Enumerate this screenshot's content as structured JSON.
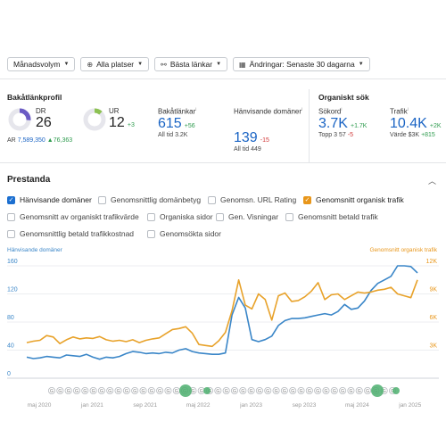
{
  "filters": {
    "volume": "Månadsvolym",
    "locations": "Alla platser",
    "links": "Bästa länkar",
    "changes": "Ändringar: Senaste 30 dagarna"
  },
  "backlink_profile": {
    "title": "Bakåtlänkprofil",
    "dr": {
      "label": "DR",
      "value": "26",
      "ring_fraction": 0.26,
      "ar_label": "AR",
      "ar_value": "7,589,350",
      "ar_delta": "▲76,363"
    },
    "ur": {
      "label": "UR",
      "value": "12",
      "delta": "+3",
      "ring_fraction": 0.12
    },
    "backlinks": {
      "label": "Bakåtlänkar",
      "value": "615",
      "delta": "+56",
      "all_time_label": "All tid",
      "all_time_value": "3.2K"
    },
    "ref_domains": {
      "label": "Hänvisande domäner",
      "value": "139",
      "delta": "-15",
      "all_time_label": "All tid",
      "all_time_value": "449"
    }
  },
  "organic": {
    "title": "Organiskt sök",
    "keywords": {
      "label": "Sökord",
      "value": "3.7K",
      "delta": "+1.7K",
      "top3_label": "Topp 3",
      "top3_value": "57",
      "top3_delta": "-5"
    },
    "traffic": {
      "label": "Trafik",
      "value": "10.4K",
      "delta": "+2K",
      "value_label": "Värde",
      "value_value": "$3K",
      "value_delta": "+815"
    }
  },
  "performance": {
    "title": "Prestanda",
    "collapse_icon": "chevron-up-icon",
    "checkboxes": [
      {
        "label": "Hänvisande domäner",
        "checked": true,
        "color": "#1c6fd0"
      },
      {
        "label": "Genomsnittlig domänbetyg",
        "checked": false
      },
      {
        "label": "Genomsn. URL Rating",
        "checked": false
      },
      {
        "label": "Genomsnitt organisk trafik",
        "checked": true,
        "color": "#e8961a"
      },
      {
        "label": "Genomsnitt av organiskt trafikvärde",
        "checked": false
      },
      {
        "label": "Organiska sidor",
        "checked": false
      },
      {
        "label": "Gen. Visningar",
        "checked": false
      },
      {
        "label": "Genomsnitt betald trafik",
        "checked": false
      },
      {
        "label": "Genomsnittlig betald trafikkostnad",
        "checked": false
      },
      {
        "label": "Genomsökta sidor",
        "checked": false
      }
    ]
  },
  "chart_data": {
    "type": "line",
    "left_axis_title": "Hänvisande domäner",
    "right_axis_title": "Genomsnitt organisk trafik",
    "left_ticks": [
      "160",
      "120",
      "80",
      "40",
      "0"
    ],
    "right_ticks": [
      "12K",
      "9K",
      "6K",
      "3K",
      ""
    ],
    "left_range": [
      0,
      160
    ],
    "right_range": [
      0,
      12000
    ],
    "x_labels": [
      "maj 2020",
      "jan 2021",
      "sep 2021",
      "maj 2022",
      "jan 2023",
      "sep 2023",
      "maj 2024",
      "jan 2025"
    ],
    "x_label_positions": [
      0,
      8,
      16,
      24,
      32,
      40,
      48,
      56
    ],
    "grid": true,
    "series": [
      {
        "name": "Hänvisande domäner",
        "axis": "left",
        "color": "#3a86c8",
        "values": [
          30,
          28,
          29,
          31,
          30,
          29,
          33,
          32,
          31,
          34,
          30,
          27,
          30,
          29,
          31,
          35,
          38,
          37,
          35,
          36,
          35,
          37,
          36,
          40,
          42,
          38,
          36,
          35,
          34,
          34,
          36,
          90,
          115,
          100,
          55,
          52,
          55,
          60,
          75,
          82,
          85,
          85,
          86,
          88,
          90,
          92,
          90,
          95,
          105,
          98,
          100,
          110,
          125,
          135,
          140,
          145,
          160,
          160,
          159,
          150
        ]
      },
      {
        "name": "Genomsnitt organisk trafik",
        "axis": "right",
        "color": "#e8a22a",
        "values": [
          3800,
          3950,
          4050,
          4550,
          4400,
          3700,
          4100,
          4400,
          4200,
          4300,
          4250,
          4450,
          4100,
          3950,
          4050,
          3900,
          4100,
          3800,
          4050,
          4200,
          4300,
          4750,
          5200,
          5300,
          5500,
          4800,
          3600,
          3500,
          3400,
          4000,
          4900,
          7200,
          10500,
          7800,
          7400,
          9000,
          8400,
          6200,
          8800,
          9100,
          8200,
          8300,
          8700,
          9300,
          10200,
          8400,
          8900,
          9000,
          8400,
          8800,
          9200,
          9100,
          9200,
          9400,
          9500,
          9700,
          9000,
          8800,
          8600,
          10500
        ]
      }
    ],
    "event_markers": [
      "G",
      "G",
      "G",
      "G",
      "G",
      "G",
      "G",
      "G",
      "G",
      "G",
      "G",
      "G",
      "G",
      "G",
      "G",
      "G",
      "G",
      "G",
      "G",
      "G",
      "G",
      "G",
      "G",
      "G",
      "G",
      "G",
      "G",
      "G",
      "G",
      "G",
      "G",
      "G",
      "G",
      "G",
      "G",
      "G",
      "G",
      "G",
      "G",
      "G",
      "G",
      "G"
    ]
  }
}
